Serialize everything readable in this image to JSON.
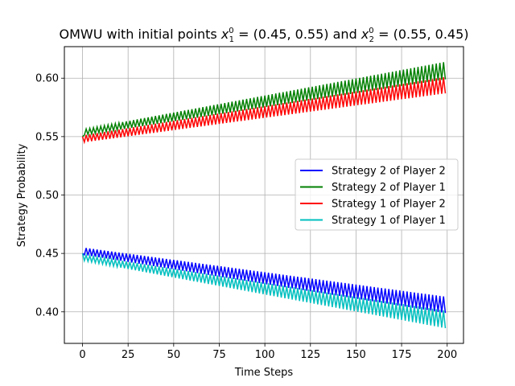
{
  "chart_data": {
    "type": "line",
    "title": "OMWU with initial points x₁⁰ = (0.45, 0.55) and x₂⁰ = (0.55, 0.45)",
    "title_parts": {
      "pre": "OMWU with initial points ",
      "sym1": "x",
      "sub1": "1",
      "sup1": "0",
      "mid1": " = (0.45, 0.55) and ",
      "sym2": "x",
      "sub2": "2",
      "sup2": "0",
      "mid2": " = (0.55, 0.45)"
    },
    "xlabel": "Time Steps",
    "ylabel": "Strategy Probability",
    "xlim": [
      -9.95,
      208.95
    ],
    "ylim": [
      0.373,
      0.627
    ],
    "xticks": [
      0,
      25,
      50,
      75,
      100,
      125,
      150,
      175,
      200
    ],
    "yticks": [
      0.4,
      0.45,
      0.5,
      0.55,
      0.6
    ],
    "ytick_labels": [
      "0.40",
      "0.45",
      "0.50",
      "0.55",
      "0.60"
    ],
    "grid": true,
    "legend_position": "center-right",
    "n_steps": 199,
    "series": [
      {
        "name": "Strategy 2 of Player 2",
        "color": "#0000ff",
        "start": 0.45,
        "even_start": 0.455,
        "even_end": 0.413,
        "odd_start": 0.449,
        "odd_end": 0.399
      },
      {
        "name": "Strategy 2 of Player 1",
        "color": "#008000",
        "start": 0.55,
        "even_start": 0.556,
        "even_end": 0.614,
        "odd_start": 0.551,
        "odd_end": 0.599
      },
      {
        "name": "Strategy 1 of Player 2",
        "color": "#ff0000",
        "start": 0.55,
        "even_start": 0.551,
        "even_end": 0.601,
        "odd_start": 0.545,
        "odd_end": 0.587
      },
      {
        "name": "Strategy 1 of Player 1",
        "color": "#00bfbf",
        "start": 0.45,
        "even_start": 0.449,
        "even_end": 0.401,
        "odd_start": 0.444,
        "odd_end": 0.386
      }
    ]
  }
}
